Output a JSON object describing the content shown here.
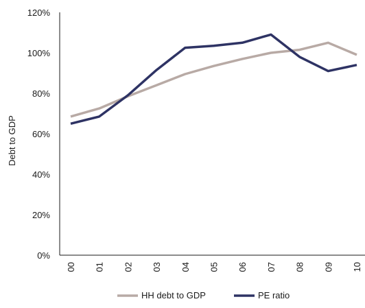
{
  "chart_data": {
    "type": "line",
    "categories": [
      "00",
      "01",
      "02",
      "03",
      "04",
      "05",
      "06",
      "07",
      "08",
      "09",
      "10"
    ],
    "series": [
      {
        "name": "HH debt to GDP",
        "color": "#b8aaa5",
        "values": [
          68.5,
          72.5,
          78.5,
          84,
          89.5,
          93.5,
          97,
          100,
          101.5,
          105,
          99
        ]
      },
      {
        "name": "PE ratio",
        "color": "#2e3364",
        "values": [
          65,
          68.5,
          79,
          91.5,
          102.5,
          103.5,
          105,
          109,
          98,
          91,
          94
        ]
      }
    ],
    "ylabel": "Debt to GDP",
    "xlabel": "",
    "ylim": [
      0,
      120
    ],
    "yticks": [
      0,
      20,
      40,
      60,
      80,
      100,
      120
    ],
    "ytick_labels": [
      "0%",
      "20%",
      "40%",
      "60%",
      "80%",
      "100%",
      "120%"
    ],
    "grid": false,
    "legend_position": "bottom"
  }
}
